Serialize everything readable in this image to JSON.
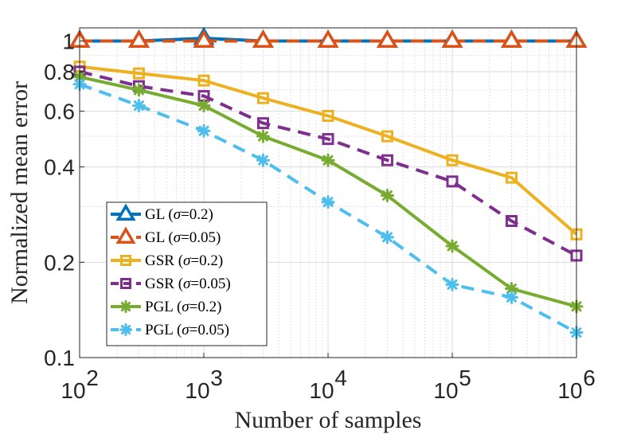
{
  "chart_data": {
    "type": "line",
    "xscale": "log",
    "yscale": "log",
    "xlim": [
      100,
      1000000
    ],
    "ylim": [
      0.1,
      1.1
    ],
    "xlabel": "Number of samples",
    "ylabel": "Normalized mean error",
    "x": [
      100,
      300,
      1000,
      3000,
      10000,
      30000,
      100000,
      300000,
      1000000
    ],
    "x_ticks": [
      {
        "value": 100,
        "base": "10",
        "exp": "2"
      },
      {
        "value": 1000,
        "base": "10",
        "exp": "3"
      },
      {
        "value": 10000,
        "base": "10",
        "exp": "4"
      },
      {
        "value": 100000,
        "base": "10",
        "exp": "5"
      },
      {
        "value": 1000000,
        "base": "10",
        "exp": "6"
      }
    ],
    "y_ticks": [
      {
        "value": 0.1,
        "label": "0.1"
      },
      {
        "value": 0.2,
        "label": "0.2"
      },
      {
        "value": 0.4,
        "label": "0.4"
      },
      {
        "value": 0.6,
        "label": "0.6"
      },
      {
        "value": 0.8,
        "label": "0.8"
      },
      {
        "value": 1,
        "label": "1"
      }
    ],
    "grid": true,
    "legend_position": "bottom-left",
    "series": [
      {
        "name": "GL",
        "sigma": "0.2",
        "color": "#0072BD",
        "marker": "triangle",
        "dash": "solid",
        "values": [
          1.0,
          1.0,
          1.02,
          1.0,
          1.0,
          1.0,
          1.0,
          1.0,
          1.0
        ]
      },
      {
        "name": "GL",
        "sigma": "0.05",
        "color": "#D95319",
        "marker": "triangle",
        "dash": "dashed",
        "values": [
          1.0,
          1.0,
          1.0,
          1.0,
          1.0,
          1.0,
          1.0,
          1.0,
          1.0
        ]
      },
      {
        "name": "GSR",
        "sigma": "0.2",
        "color": "#EDB120",
        "marker": "square",
        "dash": "solid",
        "values": [
          0.83,
          0.79,
          0.75,
          0.66,
          0.58,
          0.5,
          0.42,
          0.37,
          0.245
        ]
      },
      {
        "name": "GSR",
        "sigma": "0.05",
        "color": "#7E2F8E",
        "marker": "square",
        "dash": "dashed",
        "values": [
          0.8,
          0.72,
          0.67,
          0.55,
          0.49,
          0.42,
          0.36,
          0.27,
          0.21
        ]
      },
      {
        "name": "PGL",
        "sigma": "0.2",
        "color": "#77AC30",
        "marker": "asterisk",
        "dash": "solid",
        "values": [
          0.77,
          0.7,
          0.625,
          0.5,
          0.42,
          0.325,
          0.225,
          0.165,
          0.145
        ]
      },
      {
        "name": "PGL",
        "sigma": "0.05",
        "color": "#4DBEEE",
        "marker": "asterisk",
        "dash": "dashed",
        "values": [
          0.73,
          0.625,
          0.52,
          0.42,
          0.31,
          0.24,
          0.17,
          0.155,
          0.12
        ]
      }
    ]
  }
}
